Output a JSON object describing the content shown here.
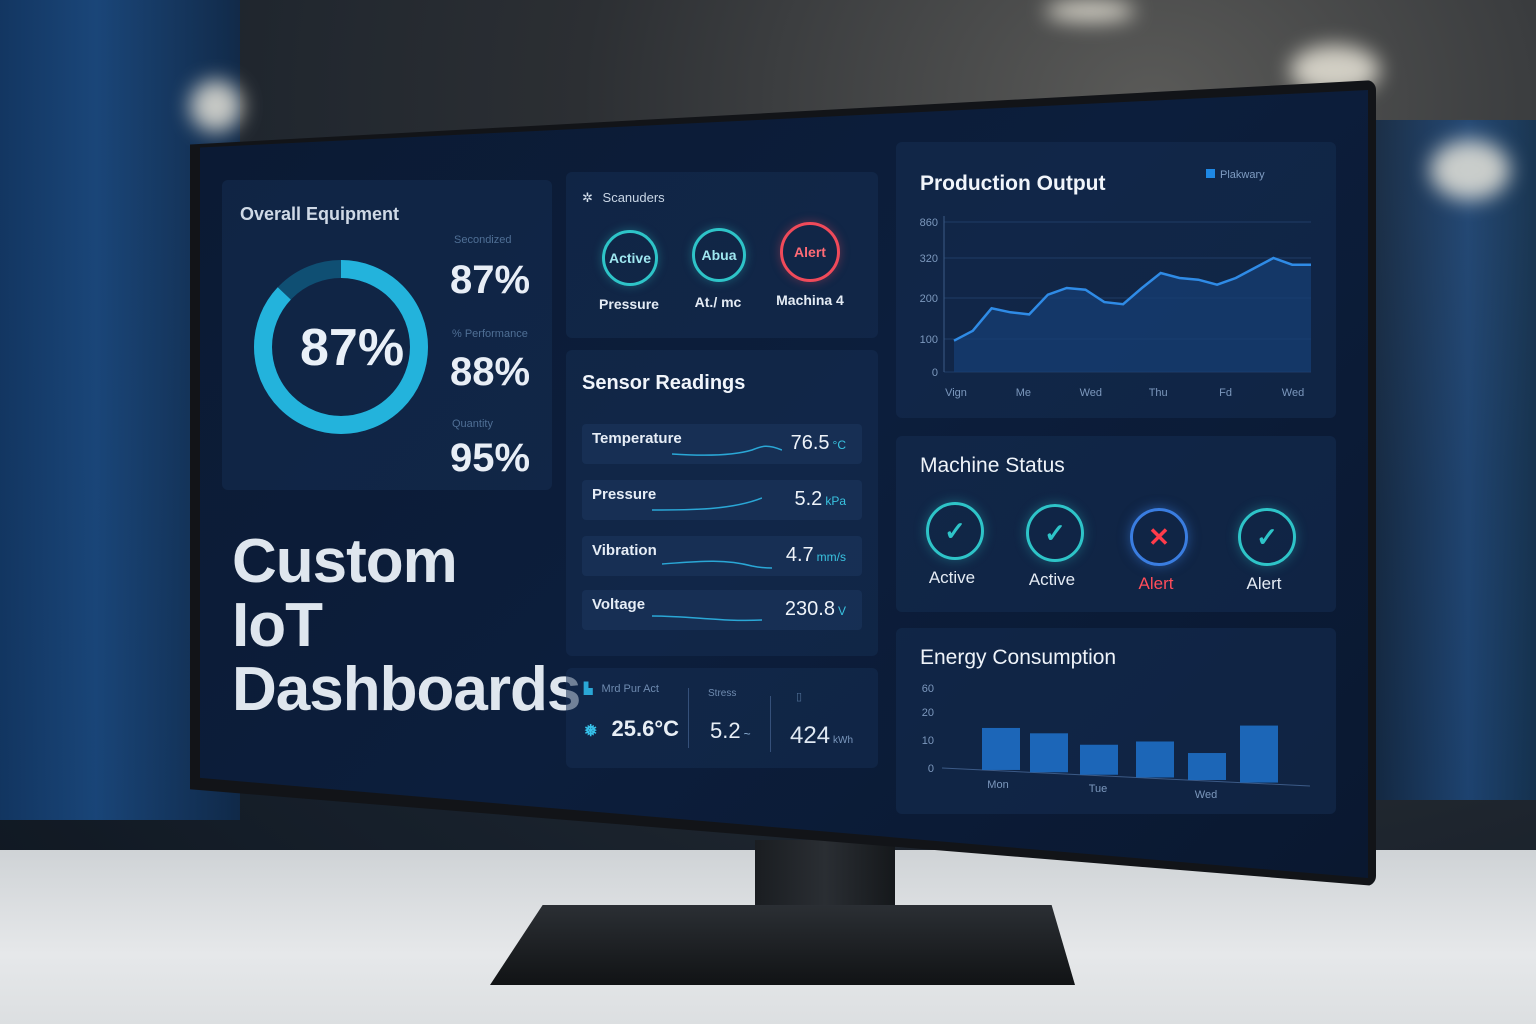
{
  "oee": {
    "title": "Overall Equipment",
    "gauge_value": "87%",
    "gauge_fraction": 0.87,
    "metrics": [
      {
        "label": "Secondized",
        "value": "87%"
      },
      {
        "label": "% Performance",
        "value": "88%"
      },
      {
        "label": "Quantity",
        "value": "95%"
      }
    ]
  },
  "headline": [
    "Custom",
    "IoT",
    "Dashboards"
  ],
  "scanners": {
    "title": "Scanuders",
    "items": [
      {
        "circle": "Active",
        "label": "Pressure",
        "state": "active"
      },
      {
        "circle": "Abua",
        "label": "At./ mc",
        "state": "active"
      },
      {
        "circle": "Alert",
        "label": "Machina 4",
        "state": "alert"
      }
    ]
  },
  "sensors": {
    "title": "Sensor Readings",
    "rows": [
      {
        "name": "Temperature",
        "value": "76.5",
        "unit": "°C"
      },
      {
        "name": "Pressure",
        "value": "5.2",
        "unit": "kPa"
      },
      {
        "name": "Vibration",
        "value": "4.7",
        "unit": "mm/s"
      },
      {
        "name": "Voltage",
        "value": "230.8",
        "unit": "V"
      }
    ]
  },
  "summary": {
    "labels": [
      "Mrd Pur Act",
      "Stress",
      ""
    ],
    "values": [
      {
        "value": "25.6°C",
        "unit": ""
      },
      {
        "value": "5.2",
        "unit": "~"
      },
      {
        "value": "424",
        "unit": "kWh"
      }
    ]
  },
  "production": {
    "title": "Production Output",
    "legend": "Plakwary",
    "colors": {
      "line": "#2f8be6",
      "fill": "#163e73",
      "legend": "#1e88e5"
    }
  },
  "machine_status": {
    "title": "Machine Status",
    "items": [
      {
        "label": "Active",
        "state": "active"
      },
      {
        "label": "Active",
        "state": "active"
      },
      {
        "label": "Alert",
        "state": "alert"
      },
      {
        "label": "Alert",
        "state": "active"
      }
    ]
  },
  "energy": {
    "title": "Energy Consumption"
  },
  "chart_data": [
    {
      "type": "area",
      "title": "Production Output",
      "legend": [
        "Plakwary"
      ],
      "y_ticks": [
        "0",
        "100",
        "200",
        "320",
        "860"
      ],
      "x_ticks": [
        "Vign",
        "Me",
        "Wed",
        "Thu",
        "Fd",
        "Wed"
      ],
      "series": [
        {
          "name": "Plakwary",
          "x": [
            0,
            0.3,
            0.6,
            0.9,
            1.2,
            1.5,
            1.8,
            2.1,
            2.4,
            2.7,
            3.0,
            3.3,
            3.6,
            3.9,
            4.2,
            4.5,
            4.8,
            5.1,
            5.4,
            5.7
          ],
          "y": [
            95,
            120,
            175,
            165,
            160,
            210,
            230,
            225,
            190,
            185,
            230,
            275,
            260,
            255,
            240,
            260,
            290,
            320,
            300,
            300
          ]
        }
      ]
    },
    {
      "type": "bar",
      "title": "Energy Consumption",
      "y_ticks": [
        "0",
        "10",
        "20",
        "60"
      ],
      "x_ticks": [
        "Mon",
        "Tue",
        "Wed"
      ],
      "values": [
        28,
        26,
        20,
        24,
        18,
        38
      ]
    }
  ]
}
